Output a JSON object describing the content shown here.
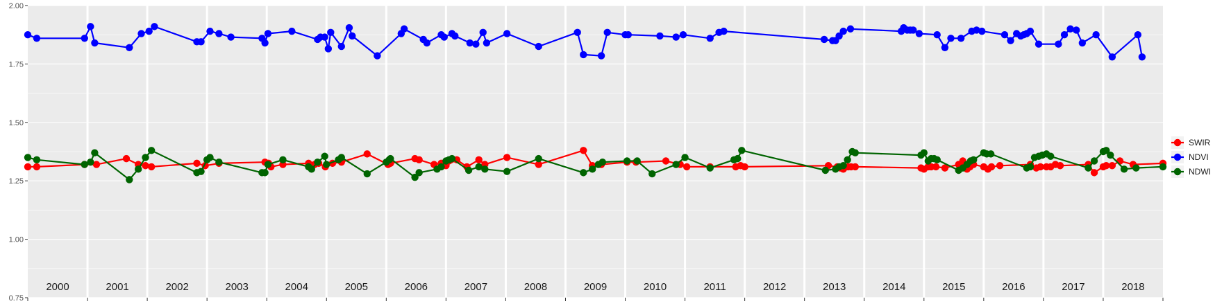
{
  "chart_data": {
    "type": "line",
    "title": "",
    "xlabel": "",
    "ylabel": "",
    "xlim": [
      2000.0,
      2019.0
    ],
    "ylim": [
      0.75,
      2.0
    ],
    "y_ticks": [
      "0.75",
      "1.00",
      "1.25",
      "1.50",
      "1.75",
      "2.00"
    ],
    "year_labels": [
      "2000",
      "2001",
      "2002",
      "2003",
      "2004",
      "2005",
      "2006",
      "2007",
      "2008",
      "2009",
      "2010",
      "2011",
      "2012",
      "2013",
      "2014",
      "2015",
      "2016",
      "2017",
      "2018"
    ],
    "grid": true,
    "legend_position": "right",
    "series": [
      {
        "name": "SWIR",
        "color": "#ff0000",
        "x": [
          2000.0,
          2000.15,
          2000.95,
          2001.15,
          2001.65,
          2001.85,
          2001.97,
          2002.07,
          2002.83,
          2002.97,
          2003.2,
          2003.97,
          2004.03,
          2004.07,
          2004.27,
          2004.7,
          2004.8,
          2004.87,
          2004.98,
          2005.1,
          2005.25,
          2005.68,
          2006.03,
          2006.07,
          2006.48,
          2006.55,
          2006.8,
          2006.92,
          2007.0,
          2007.18,
          2007.35,
          2007.55,
          2007.65,
          2008.02,
          2008.55,
          2009.3,
          2009.45,
          2009.6,
          2010.03,
          2010.18,
          2010.68,
          2010.92,
          2011.03,
          2011.42,
          2011.85,
          2011.93,
          2012.0,
          2013.4,
          2013.55,
          2013.6,
          2013.65,
          2013.73,
          2013.78,
          2013.85,
          2014.95,
          2015.0,
          2015.07,
          2015.12,
          2015.2,
          2015.35,
          2015.58,
          2015.65,
          2015.72,
          2015.77,
          2015.83,
          2016.0,
          2016.07,
          2016.13,
          2016.27,
          2016.78,
          2016.88,
          2016.95,
          2017.05,
          2017.12,
          2017.2,
          2017.28,
          2017.75,
          2017.85,
          2018.0,
          2018.05,
          2018.15,
          2018.28,
          2018.5,
          2019.0
        ],
        "values": [
          1.31,
          1.31,
          1.32,
          1.32,
          1.345,
          1.32,
          1.315,
          1.31,
          1.325,
          1.315,
          1.325,
          1.33,
          1.325,
          1.31,
          1.32,
          1.325,
          1.32,
          1.325,
          1.31,
          1.325,
          1.33,
          1.365,
          1.32,
          1.325,
          1.345,
          1.34,
          1.32,
          1.325,
          1.315,
          1.34,
          1.31,
          1.34,
          1.32,
          1.35,
          1.32,
          1.38,
          1.315,
          1.32,
          1.33,
          1.33,
          1.335,
          1.32,
          1.31,
          1.31,
          1.31,
          1.315,
          1.31,
          1.315,
          1.31,
          1.305,
          1.3,
          1.31,
          1.31,
          1.31,
          1.305,
          1.3,
          1.31,
          1.31,
          1.31,
          1.305,
          1.32,
          1.335,
          1.3,
          1.31,
          1.32,
          1.31,
          1.3,
          1.31,
          1.315,
          1.32,
          1.305,
          1.31,
          1.31,
          1.31,
          1.32,
          1.315,
          1.32,
          1.285,
          1.31,
          1.315,
          1.315,
          1.335,
          1.32,
          1.325
        ]
      },
      {
        "name": "NDVI",
        "color": "#0000ff",
        "x": [
          2000.0,
          2000.15,
          2000.95,
          2001.05,
          2001.12,
          2001.7,
          2001.9,
          2002.03,
          2002.12,
          2002.83,
          2002.9,
          2003.05,
          2003.2,
          2003.4,
          2003.92,
          2003.97,
          2004.02,
          2004.42,
          2004.85,
          2004.9,
          2004.97,
          2005.03,
          2005.07,
          2005.25,
          2005.38,
          2005.43,
          2005.85,
          2006.25,
          2006.3,
          2006.62,
          2006.68,
          2006.92,
          2006.97,
          2007.1,
          2007.15,
          2007.4,
          2007.5,
          2007.62,
          2007.68,
          2008.02,
          2008.55,
          2009.2,
          2009.3,
          2009.6,
          2009.7,
          2010.0,
          2010.05,
          2010.58,
          2010.85,
          2010.97,
          2011.42,
          2011.57,
          2011.65,
          2013.33,
          2013.47,
          2013.52,
          2013.58,
          2013.65,
          2013.77,
          2014.62,
          2014.66,
          2014.72,
          2014.77,
          2014.82,
          2014.92,
          2015.22,
          2015.35,
          2015.45,
          2015.62,
          2015.8,
          2015.88,
          2015.97,
          2016.35,
          2016.45,
          2016.55,
          2016.62,
          2016.67,
          2016.72,
          2016.78,
          2016.92,
          2017.25,
          2017.35,
          2017.45,
          2017.55,
          2017.65,
          2017.88,
          2018.15,
          2018.58,
          2018.65
        ],
        "values": [
          1.875,
          1.86,
          1.86,
          1.91,
          1.84,
          1.82,
          1.88,
          1.89,
          1.91,
          1.845,
          1.845,
          1.89,
          1.88,
          1.865,
          1.86,
          1.84,
          1.88,
          1.89,
          1.855,
          1.865,
          1.865,
          1.815,
          1.885,
          1.825,
          1.905,
          1.87,
          1.785,
          1.88,
          1.9,
          1.855,
          1.84,
          1.875,
          1.865,
          1.88,
          1.87,
          1.84,
          1.835,
          1.885,
          1.84,
          1.88,
          1.825,
          1.885,
          1.79,
          1.785,
          1.885,
          1.875,
          1.875,
          1.87,
          1.865,
          1.875,
          1.86,
          1.885,
          1.89,
          1.855,
          1.85,
          1.85,
          1.87,
          1.89,
          1.9,
          1.89,
          1.905,
          1.895,
          1.895,
          1.895,
          1.88,
          1.875,
          1.82,
          1.86,
          1.86,
          1.89,
          1.895,
          1.89,
          1.875,
          1.85,
          1.88,
          1.87,
          1.875,
          1.88,
          1.89,
          1.835,
          1.835,
          1.875,
          1.9,
          1.895,
          1.84,
          1.875,
          1.78,
          1.875,
          1.78
        ]
      },
      {
        "name": "NDWI",
        "color": "#006400",
        "x": [
          2000.0,
          2000.15,
          2000.95,
          2001.05,
          2001.12,
          2001.7,
          2001.85,
          2001.97,
          2002.07,
          2002.83,
          2002.9,
          2003.0,
          2003.05,
          2003.2,
          2003.92,
          2003.97,
          2004.02,
          2004.27,
          2004.7,
          2004.75,
          2004.85,
          2004.97,
          2005.0,
          2005.2,
          2005.25,
          2005.68,
          2006.0,
          2006.05,
          2006.07,
          2006.48,
          2006.55,
          2006.85,
          2006.92,
          2007.0,
          2007.05,
          2007.1,
          2007.38,
          2007.55,
          2007.65,
          2008.02,
          2008.55,
          2009.3,
          2009.45,
          2009.55,
          2009.62,
          2010.03,
          2010.2,
          2010.45,
          2010.85,
          2011.0,
          2011.42,
          2011.82,
          2011.88,
          2011.95,
          2013.35,
          2013.52,
          2013.58,
          2013.65,
          2013.72,
          2013.8,
          2013.85,
          2014.95,
          2015.0,
          2015.07,
          2015.12,
          2015.17,
          2015.22,
          2015.58,
          2015.65,
          2015.72,
          2015.78,
          2015.83,
          2016.0,
          2016.05,
          2016.12,
          2016.72,
          2016.78,
          2016.85,
          2016.92,
          2016.98,
          2017.05,
          2017.12,
          2017.75,
          2017.85,
          2018.0,
          2018.05,
          2018.12,
          2018.35,
          2018.55,
          2019.0
        ],
        "values": [
          1.35,
          1.34,
          1.32,
          1.33,
          1.37,
          1.255,
          1.3,
          1.35,
          1.38,
          1.285,
          1.29,
          1.34,
          1.35,
          1.33,
          1.285,
          1.285,
          1.32,
          1.34,
          1.31,
          1.3,
          1.33,
          1.355,
          1.32,
          1.34,
          1.35,
          1.28,
          1.33,
          1.34,
          1.345,
          1.265,
          1.285,
          1.3,
          1.31,
          1.335,
          1.34,
          1.345,
          1.295,
          1.31,
          1.3,
          1.29,
          1.345,
          1.285,
          1.3,
          1.32,
          1.33,
          1.335,
          1.335,
          1.28,
          1.32,
          1.35,
          1.305,
          1.34,
          1.345,
          1.38,
          1.295,
          1.3,
          1.31,
          1.315,
          1.34,
          1.375,
          1.37,
          1.36,
          1.37,
          1.335,
          1.345,
          1.345,
          1.34,
          1.295,
          1.305,
          1.32,
          1.335,
          1.34,
          1.37,
          1.365,
          1.365,
          1.305,
          1.31,
          1.35,
          1.355,
          1.36,
          1.365,
          1.355,
          1.305,
          1.335,
          1.375,
          1.38,
          1.36,
          1.3,
          1.305,
          1.31
        ]
      }
    ]
  }
}
